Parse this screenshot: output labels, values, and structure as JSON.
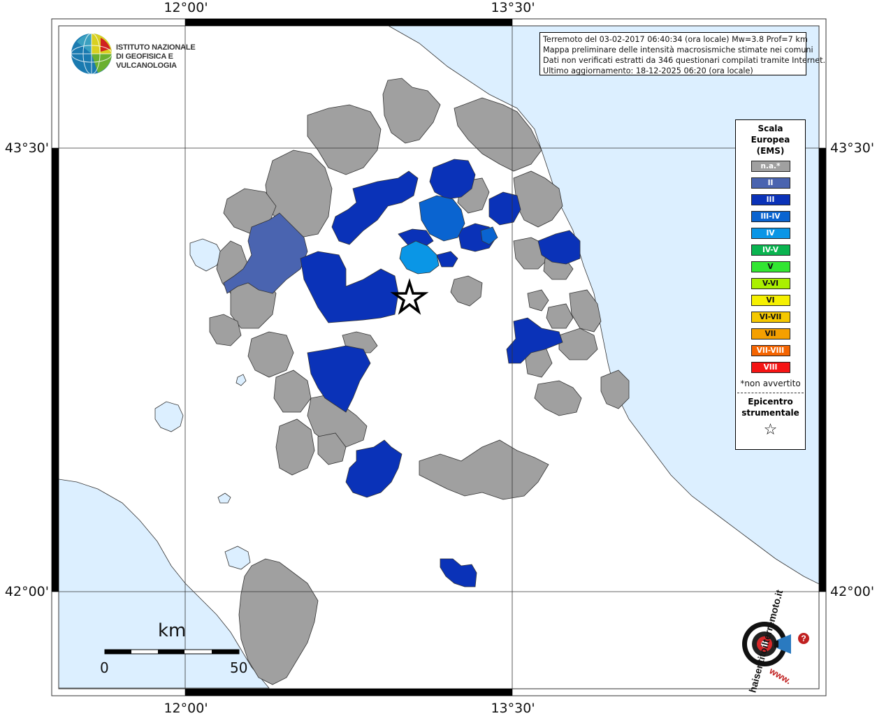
{
  "axes": {
    "top": [
      "12°00'",
      "13°30'"
    ],
    "bottom": [
      "12°00'",
      "13°30'"
    ],
    "left": [
      "43°30'",
      "42°00'"
    ],
    "right": [
      "43°30'",
      "42°00'"
    ]
  },
  "logo_ingv": {
    "line1": "ISTITUTO NAZIONALE",
    "line2": "DI GEOFISICA E VULCANOLOGIA"
  },
  "info": {
    "line1": "Terremoto del 03-02-2017 06:40:34 (ora locale) Mw=3.8 Prof=7 km",
    "line2": "Mappa preliminare delle intensità macrosismiche stimate nei comuni",
    "line3": "Dati non verificati estratti da 346 questionari compilati tramite Internet.",
    "line4": "Ultimo aggiornamento: 18-12-2025 06:20 (ora locale)"
  },
  "legend": {
    "title_line1": "Scala",
    "title_line2": "Europea",
    "title_line3": "(EMS)",
    "items": [
      {
        "label": "n.a.*",
        "color": "#a0a0a0"
      },
      {
        "label": "II",
        "color": "#4a64b0"
      },
      {
        "label": "III",
        "color": "#0a32b8"
      },
      {
        "label": "III-IV",
        "color": "#0a64d0"
      },
      {
        "label": "IV",
        "color": "#0a96e6"
      },
      {
        "label": "IV-V",
        "color": "#0ab450"
      },
      {
        "label": "V",
        "color": "#32e632"
      },
      {
        "label": "V-VI",
        "color": "#aaf000"
      },
      {
        "label": "VI",
        "color": "#f5f000"
      },
      {
        "label": "VI-VII",
        "color": "#f5c800"
      },
      {
        "label": "VII",
        "color": "#f5a000"
      },
      {
        "label": "VII-VIII",
        "color": "#f56400"
      },
      {
        "label": "VIII",
        "color": "#f51414"
      }
    ],
    "note": "*non avvertito",
    "epicenter_line1": "Epicentro",
    "epicenter_line2": "strumentale",
    "epicenter_symbol": "☆"
  },
  "scale_bar": {
    "unit": "km",
    "start": "0",
    "end": "50"
  },
  "hsl_logo": {
    "text_top": "haisentitoilterremoto.it",
    "text_bottom": "www.",
    "question": "?"
  },
  "colors": {
    "sea": "#dcefff",
    "land": "#ffffff",
    "na": "#a0a0a0",
    "ems_ii": "#4a64b0",
    "ems_iii": "#0a32b8",
    "ems_iii_iv": "#0a64d0",
    "ems_iv": "#0a96e6"
  }
}
